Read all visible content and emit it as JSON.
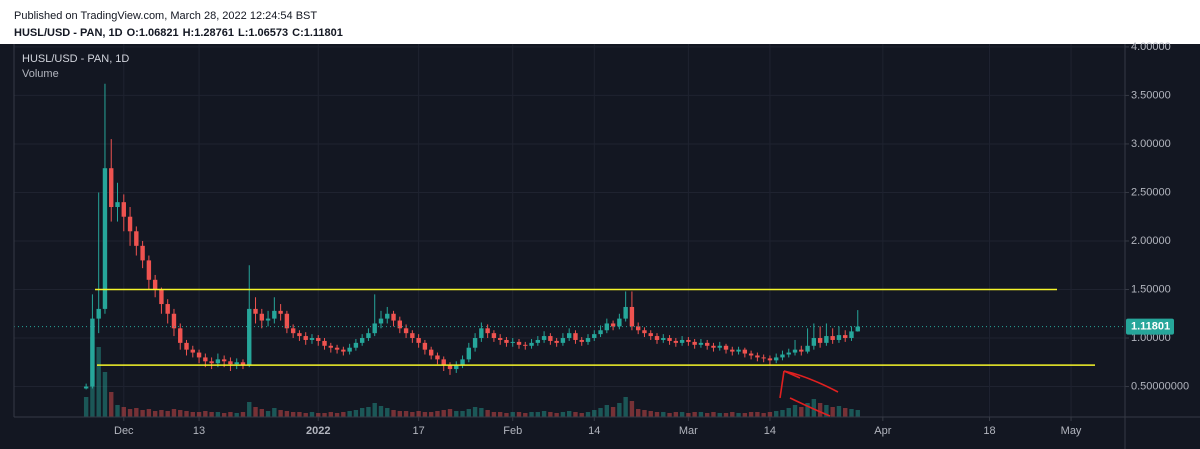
{
  "chart_data": {
    "type": "candlestick",
    "published": "Published on TradingView.com, March 28, 2022 12:24:54 BST",
    "symbol": "HUSL/USD - PAN, 1D",
    "ohlc_keys": [
      "O:",
      "H:",
      "L:",
      "C:"
    ],
    "volume_label": "Volume",
    "up_color": "#26a69a",
    "down_color": "#ef5350",
    "level_color": "#f5f52a",
    "open": [
      0.48,
      0.5,
      1.2,
      1.3,
      2.75,
      2.35,
      2.4,
      2.25,
      2.1,
      1.95,
      1.8,
      1.6,
      1.5,
      1.35,
      1.25,
      1.1,
      0.95,
      0.88,
      0.85,
      0.8,
      0.76,
      0.74,
      0.78,
      0.76,
      0.73,
      0.75,
      0.72,
      1.3,
      1.25,
      1.18,
      1.2,
      1.28,
      1.25,
      1.1,
      1.05,
      1.02,
      0.98,
      1.0,
      0.97,
      0.92,
      0.9,
      0.88,
      0.86,
      0.9,
      0.95,
      1.0,
      1.05,
      1.15,
      1.2,
      1.25,
      1.18,
      1.1,
      1.05,
      1.0,
      0.95,
      0.88,
      0.82,
      0.78,
      0.72,
      0.68,
      0.72,
      0.78,
      0.9,
      1.0,
      1.1,
      1.05,
      1.0,
      0.98,
      0.95,
      0.96,
      0.93,
      0.92,
      0.95,
      0.98,
      1.02,
      0.97,
      0.95,
      1.0,
      1.05,
      0.98,
      0.96,
      1.0,
      1.04,
      1.08,
      1.15,
      1.12,
      1.2,
      1.32,
      1.12,
      1.08,
      1.05,
      1.02,
      0.98,
      1.0,
      0.97,
      0.95,
      0.98,
      0.96,
      0.93,
      0.95,
      0.92,
      0.9,
      0.92,
      0.88,
      0.86,
      0.88,
      0.84,
      0.82,
      0.8,
      0.79,
      0.77,
      0.8,
      0.83,
      0.85,
      0.88,
      0.86,
      0.92,
      1.0,
      0.95,
      1.02,
      0.98,
      1.03,
      1.0,
      1.06821
    ],
    "high": [
      0.53,
      1.45,
      2.5,
      3.62,
      3.05,
      2.6,
      2.48,
      2.35,
      2.15,
      2.0,
      1.85,
      1.65,
      1.52,
      1.4,
      1.3,
      1.15,
      0.98,
      0.92,
      0.88,
      0.84,
      0.8,
      0.84,
      0.82,
      0.8,
      0.79,
      0.78,
      1.75,
      1.42,
      1.3,
      1.28,
      1.42,
      1.35,
      1.28,
      1.14,
      1.08,
      1.06,
      1.04,
      1.03,
      1.0,
      0.95,
      0.93,
      0.91,
      0.94,
      0.99,
      1.04,
      1.1,
      1.45,
      1.28,
      1.32,
      1.28,
      1.22,
      1.14,
      1.08,
      1.04,
      0.98,
      0.91,
      0.85,
      0.81,
      0.75,
      0.76,
      0.82,
      0.95,
      1.05,
      1.16,
      1.14,
      1.08,
      1.04,
      1.01,
      1.0,
      0.99,
      0.96,
      0.99,
      1.02,
      1.07,
      1.05,
      1.0,
      1.05,
      1.1,
      1.08,
      1.01,
      1.04,
      1.08,
      1.13,
      1.2,
      1.18,
      1.25,
      1.48,
      1.48,
      1.16,
      1.11,
      1.08,
      1.05,
      1.04,
      1.03,
      1.0,
      1.02,
      1.01,
      0.99,
      0.99,
      0.98,
      0.95,
      0.96,
      0.94,
      0.91,
      0.91,
      0.9,
      0.87,
      0.85,
      0.83,
      0.82,
      0.84,
      0.87,
      0.89,
      0.98,
      0.92,
      1.1,
      1.15,
      1.12,
      1.15,
      1.1,
      1.12,
      1.08,
      1.12,
      1.28761
    ],
    "low": [
      0.47,
      0.48,
      1.05,
      1.25,
      2.2,
      2.2,
      2.1,
      1.95,
      1.85,
      1.72,
      1.5,
      1.42,
      1.25,
      1.15,
      1.02,
      0.88,
      0.82,
      0.8,
      0.74,
      0.7,
      0.68,
      0.7,
      0.7,
      0.66,
      0.68,
      0.68,
      0.7,
      1.15,
      1.1,
      1.12,
      1.15,
      1.18,
      1.05,
      1.0,
      0.97,
      0.93,
      0.94,
      0.92,
      0.88,
      0.85,
      0.84,
      0.82,
      0.83,
      0.87,
      0.92,
      0.97,
      1.02,
      1.1,
      1.15,
      1.12,
      1.05,
      1.0,
      0.95,
      0.9,
      0.83,
      0.78,
      0.73,
      0.66,
      0.62,
      0.64,
      0.69,
      0.75,
      0.86,
      0.96,
      1.0,
      0.96,
      0.93,
      0.91,
      0.91,
      0.89,
      0.88,
      0.89,
      0.92,
      0.95,
      0.93,
      0.91,
      0.92,
      0.97,
      0.94,
      0.92,
      0.93,
      0.97,
      1.01,
      1.05,
      1.08,
      1.09,
      1.17,
      1.08,
      1.04,
      1.01,
      0.98,
      0.94,
      0.95,
      0.93,
      0.91,
      0.92,
      0.92,
      0.89,
      0.9,
      0.88,
      0.86,
      0.87,
      0.84,
      0.82,
      0.83,
      0.8,
      0.78,
      0.76,
      0.75,
      0.72,
      0.74,
      0.77,
      0.8,
      0.82,
      0.82,
      0.84,
      0.88,
      0.9,
      0.92,
      0.94,
      0.95,
      0.96,
      0.97,
      1.06573
    ],
    "close": [
      0.5,
      1.2,
      1.3,
      2.75,
      2.35,
      2.4,
      2.25,
      2.1,
      1.95,
      1.8,
      1.6,
      1.5,
      1.35,
      1.25,
      1.1,
      0.95,
      0.88,
      0.85,
      0.8,
      0.76,
      0.74,
      0.78,
      0.76,
      0.73,
      0.75,
      0.72,
      1.3,
      1.25,
      1.18,
      1.2,
      1.28,
      1.25,
      1.1,
      1.05,
      1.02,
      0.98,
      1.0,
      0.97,
      0.92,
      0.9,
      0.88,
      0.86,
      0.9,
      0.95,
      1.0,
      1.05,
      1.15,
      1.2,
      1.25,
      1.18,
      1.1,
      1.05,
      1.0,
      0.95,
      0.88,
      0.82,
      0.78,
      0.72,
      0.68,
      0.72,
      0.78,
      0.9,
      1.0,
      1.1,
      1.05,
      1.0,
      0.98,
      0.95,
      0.96,
      0.93,
      0.92,
      0.95,
      0.98,
      1.02,
      0.97,
      0.95,
      1.0,
      1.05,
      0.98,
      0.96,
      1.0,
      1.04,
      1.08,
      1.15,
      1.12,
      1.2,
      1.32,
      1.12,
      1.08,
      1.05,
      1.02,
      0.98,
      1.0,
      0.97,
      0.95,
      0.98,
      0.96,
      0.93,
      0.95,
      0.92,
      0.9,
      0.92,
      0.88,
      0.86,
      0.88,
      0.84,
      0.82,
      0.8,
      0.79,
      0.77,
      0.8,
      0.83,
      0.85,
      0.88,
      0.86,
      0.92,
      1.0,
      0.95,
      1.02,
      0.98,
      1.03,
      1.0,
      1.06821,
      1.11801
    ],
    "volume": [
      20,
      80,
      70,
      45,
      25,
      12,
      10,
      8,
      9,
      7,
      8,
      6,
      7,
      6,
      8,
      7,
      6,
      5,
      5,
      6,
      5,
      5,
      4,
      5,
      4,
      5,
      15,
      10,
      8,
      6,
      9,
      7,
      6,
      5,
      5,
      4,
      5,
      4,
      4,
      5,
      4,
      5,
      6,
      7,
      9,
      10,
      14,
      11,
      9,
      7,
      6,
      6,
      5,
      6,
      5,
      5,
      6,
      7,
      8,
      6,
      6,
      8,
      10,
      9,
      7,
      5,
      5,
      4,
      5,
      5,
      4,
      5,
      5,
      6,
      5,
      4,
      5,
      6,
      5,
      4,
      5,
      7,
      9,
      12,
      10,
      14,
      20,
      16,
      8,
      7,
      6,
      5,
      5,
      4,
      5,
      5,
      4,
      5,
      5,
      4,
      5,
      4,
      4,
      5,
      4,
      4,
      5,
      5,
      4,
      5,
      6,
      7,
      9,
      12,
      10,
      14,
      18,
      14,
      12,
      10,
      11,
      9,
      8,
      7
    ],
    "volume_lim": [
      0,
      100
    ],
    "xlim": [
      -11.5,
      165.6
    ],
    "xticks": [
      {
        "value": 6,
        "label": "Dec"
      },
      {
        "value": 18,
        "label": "13"
      },
      {
        "value": 37,
        "label": "2022"
      },
      {
        "value": 53,
        "label": "17"
      },
      {
        "value": 68,
        "label": "Feb"
      },
      {
        "value": 81,
        "label": "14"
      },
      {
        "value": 96,
        "label": "Mar"
      },
      {
        "value": 109,
        "label": "14"
      },
      {
        "value": 127,
        "label": "Apr"
      },
      {
        "value": 144,
        "label": "18"
      },
      {
        "value": 157,
        "label": "May"
      }
    ],
    "ylim": [
      0.186,
      4.03
    ],
    "yticks": [
      {
        "value": 0.5,
        "label": "0.50000000"
      },
      {
        "value": 1,
        "label": "1.00000"
      },
      {
        "value": 1.5,
        "label": "1.50000"
      },
      {
        "value": 2,
        "label": "2.00000"
      },
      {
        "value": 2.5,
        "label": "2.50000"
      },
      {
        "value": 3,
        "label": "3.00000"
      },
      {
        "value": 3.5,
        "label": "3.50000"
      },
      {
        "value": 4,
        "label": "4.00000"
      }
    ],
    "grid": true,
    "levels": [
      1.5,
      0.72
    ]
  }
}
